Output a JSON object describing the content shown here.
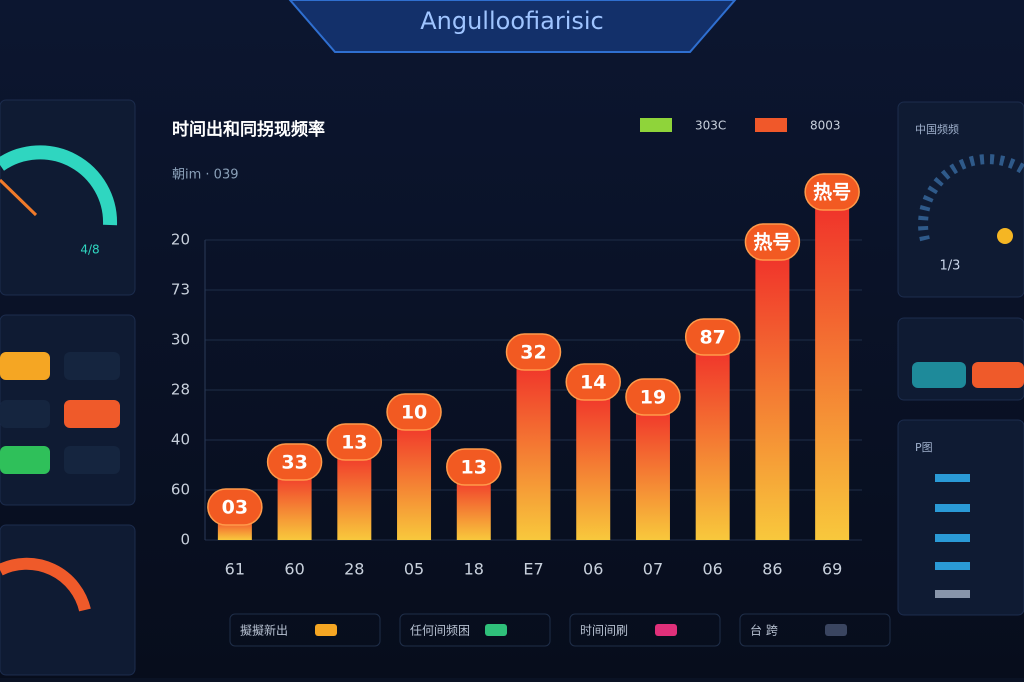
{
  "header": {
    "title": "Angulloofiarisic"
  },
  "chart_data": {
    "type": "bar",
    "title": "时间出和同拐现频率",
    "subtitle": "朝im · 039",
    "categories": [
      "61",
      "60",
      "28",
      "05",
      "18",
      "E7",
      "06",
      "07",
      "06",
      "86",
      "69"
    ],
    "values": [
      0.5,
      1.4,
      1.8,
      2.4,
      1.3,
      3.6,
      3.0,
      2.7,
      3.9,
      5.8,
      6.8
    ],
    "bar_labels": [
      "03",
      "33",
      "13",
      "10",
      "13",
      "32",
      "14",
      "19",
      "87",
      "热号",
      "热号"
    ],
    "color_top": "#f0302a",
    "color_bottom": "#f8c83c",
    "label_color": "#f25a22",
    "ylim": [
      0,
      7
    ],
    "yticks": [
      0,
      {
        "value": 1,
        "label": "60"
      },
      {
        "value": 2,
        "label": "40"
      },
      {
        "value": 3,
        "label": "28"
      },
      {
        "value": 4,
        "label": "30"
      },
      {
        "value": 5,
        "label": "73"
      },
      {
        "value": 6,
        "label": "20"
      }
    ],
    "grid": true,
    "legend": [
      {
        "name": "303C",
        "color": "#8fd43a"
      },
      {
        "name": "8003",
        "color": "#f0582a"
      }
    ]
  },
  "footer_legend": [
    {
      "name": "擬擬新出",
      "color": "#f5a623"
    },
    {
      "name": "任何间频困",
      "color": "#2fc07a"
    },
    {
      "name": "时间间刷",
      "color": "#e0307a"
    },
    {
      "name": "台 跨",
      "color": "#3a4560"
    }
  ],
  "side_panels": {
    "left_gauge": "4/8",
    "right_title": "中国频频",
    "right_gauge": "1/3",
    "right_list_title": "P图"
  }
}
